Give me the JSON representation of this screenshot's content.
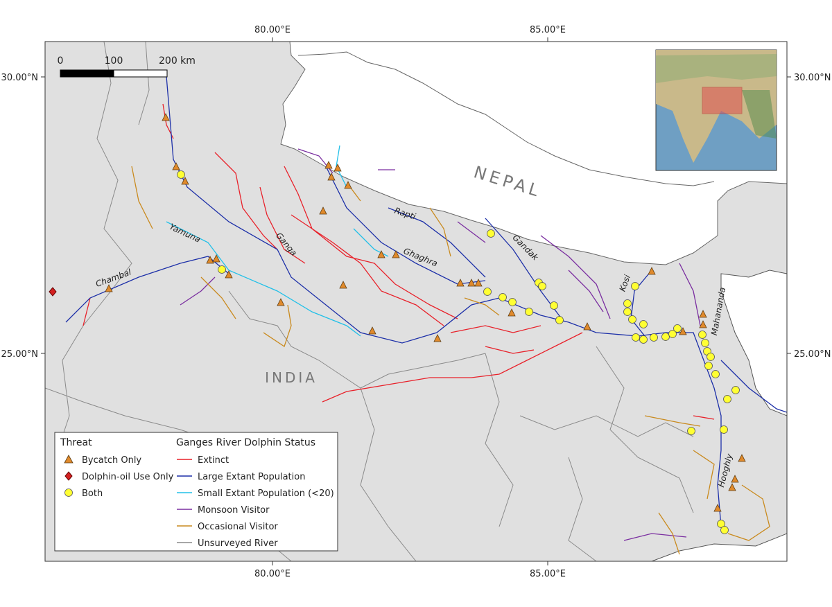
{
  "map": {
    "lon_labels": [
      "80.00°E",
      "85.00°E"
    ],
    "lat_labels": [
      "30.00°N",
      "25.00°N"
    ],
    "scale_bar": [
      "0",
      "100",
      "200 km"
    ],
    "country_labels": [
      "NEPAL",
      "INDIA"
    ],
    "river_labels": [
      "Yamuna",
      "Chambal",
      "Ganga",
      "Rapti",
      "Ghaghra",
      "Gandak",
      "Kosi",
      "Mahananda",
      "Hooghly"
    ]
  },
  "legend": {
    "threat_title": "Threat",
    "threat_items": [
      "Bycatch Only",
      "Dolphin-oil Use Only",
      "Both"
    ],
    "status_title": "Ganges River Dolphin Status",
    "status_items": [
      "Extinct",
      "Large Extant Population",
      "Small Extant Population (<20)",
      "Monsoon Visitor",
      "Occasional Visitor",
      "Unsurveyed River"
    ]
  }
}
